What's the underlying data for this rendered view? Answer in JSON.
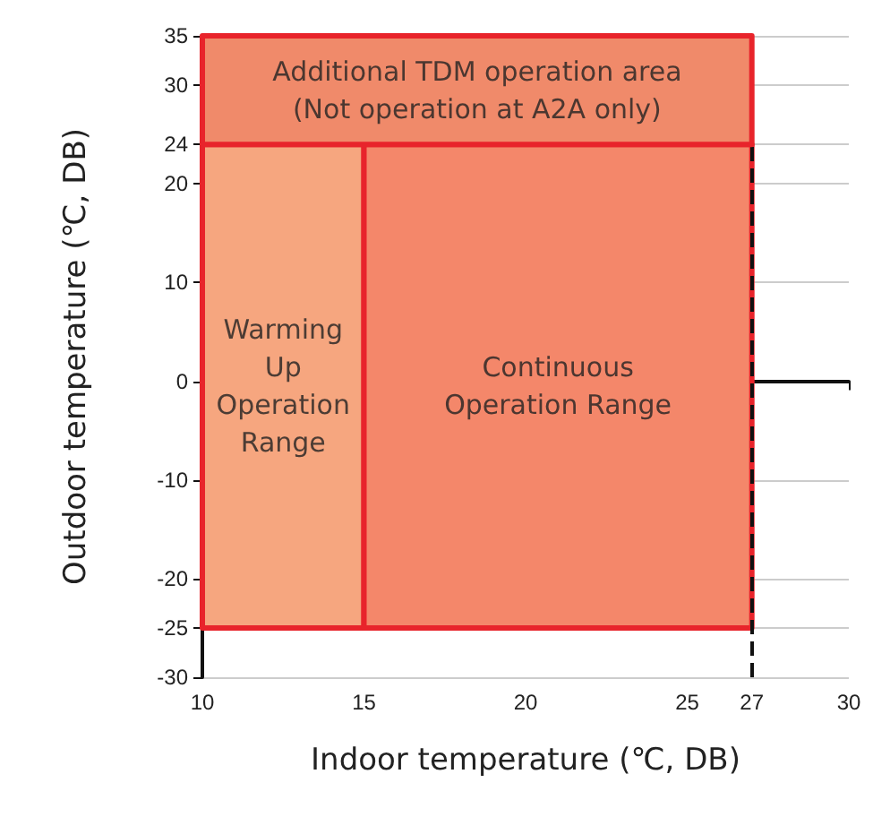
{
  "chart_data": {
    "type": "line",
    "xlabel": "Indoor temperature (℃, DB)",
    "ylabel": "Outdoor temperature (℃, DB)",
    "xlim": [
      10,
      30
    ],
    "xticks": [
      10,
      15,
      20,
      25,
      27,
      30
    ],
    "ylim": [
      -30,
      35
    ],
    "yticks": [
      -30,
      -25,
      -20,
      -10,
      0,
      10,
      20,
      24,
      30,
      35
    ],
    "grid": "y",
    "series": [
      {
        "x": [
          10,
          15
        ],
        "values": [
          null,
          null
        ],
        "lower": [
          -25,
          -25
        ],
        "upper": [
          24,
          24
        ],
        "color": "#f6a67f"
      },
      {
        "x": [
          15,
          27
        ],
        "values": [
          null,
          null
        ],
        "lower": [
          -25,
          -25
        ],
        "upper": [
          24,
          24
        ],
        "color": "#f4876a"
      },
      {
        "x": [
          10,
          27
        ],
        "values": [
          null,
          null
        ],
        "lower": [
          24,
          24
        ],
        "upper": [
          35,
          35
        ],
        "color": "#f08a6a"
      }
    ],
    "ref_lines": [
      {
        "axis": "x",
        "value": 27,
        "line_style": "dashed",
        "color": "#111111"
      }
    ],
    "annotations": [
      "Additional TDM operation area\n(Not operation at A2A only)",
      "Warming\nUp\nOperation\nRange",
      "Continuous\nOperation Range"
    ]
  }
}
